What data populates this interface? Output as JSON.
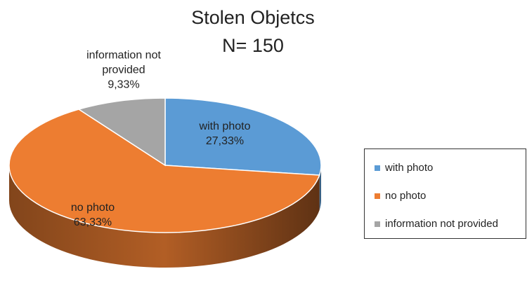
{
  "chart_data": {
    "type": "pie3d",
    "title": "Stolen Objetcs",
    "subtitle": "N= 150",
    "categories": [
      "with photo",
      "no photo",
      "information not provided"
    ],
    "values": [
      27.33,
      63.33,
      9.33
    ],
    "value_labels": [
      "27,33%",
      "63,33%",
      "9,33%"
    ],
    "colors": [
      "#5b9bd5",
      "#ed7d31",
      "#a5a5a5"
    ],
    "legend": "right"
  }
}
